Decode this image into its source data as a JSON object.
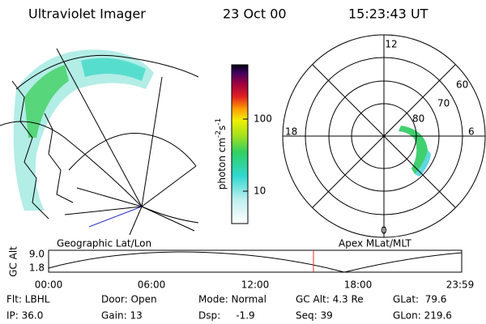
{
  "header": {
    "title": "Ultraviolet Imager",
    "date": "23 Oct 00",
    "time": "15:23:43 UT"
  },
  "colorbar": {
    "label": {
      "base": "photon cm",
      "exp1": "-2",
      "unit2": "s",
      "exp2": "-1"
    },
    "ticks": [
      "100",
      "10"
    ]
  },
  "polar": {
    "mlt_labels": [
      "12",
      "18",
      "6",
      "0"
    ],
    "lat_labels": [
      "60",
      "70",
      "80"
    ]
  },
  "captions": {
    "left": "Geographic Lat/Lon",
    "right": "Apex MLat/MLT"
  },
  "altitude_strip": {
    "ylabel": "GC Alt",
    "yticks": [
      "9.0",
      "1.8"
    ],
    "xticks": [
      "00:00",
      "06:00",
      "12:00",
      "18:00",
      "23:59"
    ]
  },
  "footer": {
    "rows": [
      [
        "Flt: LBHL",
        "Door: Open",
        "Mode: Normal",
        "GC Alt: 4.3 Re",
        "GLat:  79.6"
      ],
      [
        "IP: 36.0",
        "Gain: 13",
        "Dsp:     -1.9",
        "Seq: 39",
        "GLon: 219.6"
      ]
    ]
  }
}
